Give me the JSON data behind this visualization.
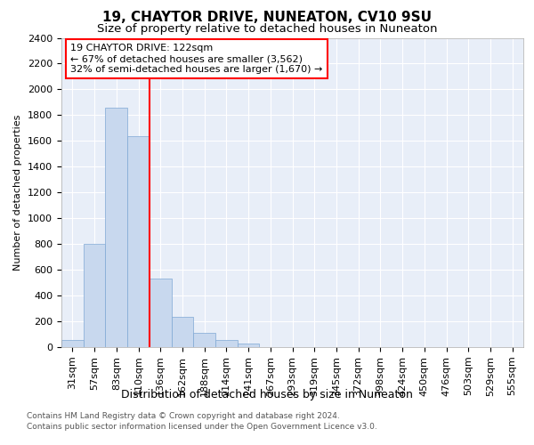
{
  "title1": "19, CHAYTOR DRIVE, NUNEATON, CV10 9SU",
  "title2": "Size of property relative to detached houses in Nuneaton",
  "xlabel": "Distribution of detached houses by size in Nuneaton",
  "ylabel": "Number of detached properties",
  "bin_labels": [
    "31sqm",
    "57sqm",
    "83sqm",
    "110sqm",
    "136sqm",
    "162sqm",
    "188sqm",
    "214sqm",
    "241sqm",
    "267sqm",
    "293sqm",
    "319sqm",
    "345sqm",
    "372sqm",
    "398sqm",
    "424sqm",
    "450sqm",
    "476sqm",
    "503sqm",
    "529sqm",
    "555sqm"
  ],
  "bar_heights": [
    55,
    800,
    1860,
    1635,
    530,
    235,
    110,
    55,
    30,
    0,
    0,
    0,
    0,
    0,
    0,
    0,
    0,
    0,
    0,
    0,
    0
  ],
  "bar_color": "#c8d8ee",
  "bar_edge_color": "#7fa8d4",
  "red_line_x": 3.5,
  "annotation_text": "19 CHAYTOR DRIVE: 122sqm\n← 67% of detached houses are smaller (3,562)\n32% of semi-detached houses are larger (1,670) →",
  "ylim": [
    0,
    2400
  ],
  "yticks": [
    0,
    200,
    400,
    600,
    800,
    1000,
    1200,
    1400,
    1600,
    1800,
    2000,
    2200,
    2400
  ],
  "footer1": "Contains HM Land Registry data © Crown copyright and database right 2024.",
  "footer2": "Contains public sector information licensed under the Open Government Licence v3.0.",
  "plot_bg_color": "#e8eef8",
  "grid_color": "#ffffff",
  "title1_fontsize": 11,
  "title2_fontsize": 9.5,
  "xlabel_fontsize": 9,
  "ylabel_fontsize": 8,
  "tick_fontsize": 8,
  "annot_fontsize": 8,
  "footer_fontsize": 6.5
}
